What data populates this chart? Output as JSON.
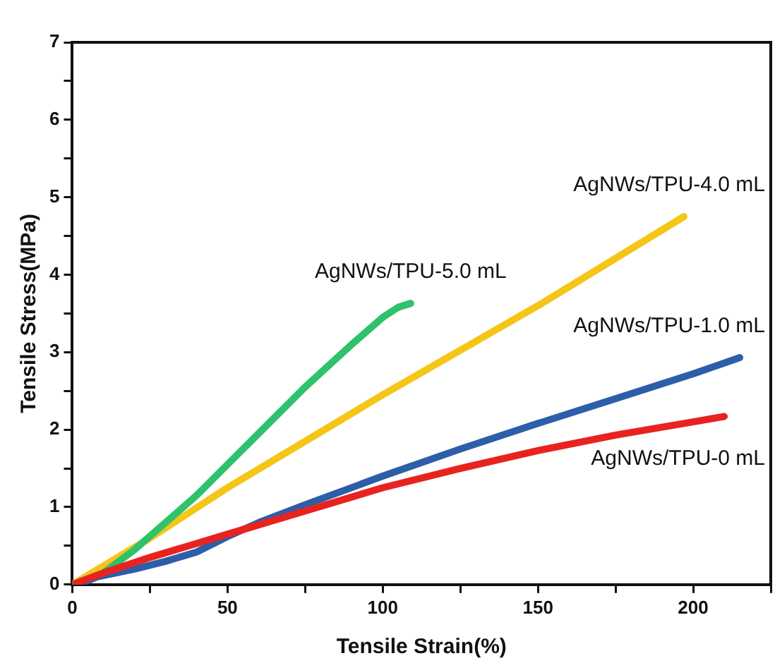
{
  "chart_data": {
    "type": "line",
    "xlabel": "Tensile Strain(%)",
    "ylabel": "Tensile Stress(MPa)",
    "xlim": [
      0,
      225
    ],
    "ylim": [
      0,
      7
    ],
    "xticks": [
      0,
      {
        "value": 25,
        "label": null
      },
      50,
      {
        "value": 75,
        "label": null
      },
      100,
      {
        "value": 125,
        "label": null
      },
      150,
      {
        "value": 175,
        "label": null
      },
      200,
      {
        "value": 225,
        "label": null
      }
    ],
    "yticks": [
      0,
      {
        "value": 0.5,
        "label": null
      },
      1,
      {
        "value": 1.5,
        "label": null
      },
      2,
      {
        "value": 2.5,
        "label": null
      },
      3,
      {
        "value": 3.5,
        "label": null
      },
      4,
      {
        "value": 4.5,
        "label": null
      },
      5,
      {
        "value": 5.5,
        "label": null
      },
      6,
      {
        "value": 6.5,
        "label": null
      },
      7
    ],
    "grid": false,
    "legend": false,
    "marker": "none",
    "line_style": "solid",
    "series": [
      {
        "name": "AgNWs/TPU-0 mL",
        "color": "#e8231f",
        "x": [
          0,
          10,
          25,
          50,
          75,
          100,
          125,
          150,
          175,
          200,
          210
        ],
        "values": [
          0,
          0.15,
          0.35,
          0.65,
          0.95,
          1.25,
          1.5,
          1.73,
          1.93,
          2.1,
          2.17
        ]
      },
      {
        "name": "AgNWs/TPU-1.0 mL",
        "color": "#2d5ea8",
        "x": [
          2,
          8,
          20,
          30,
          40,
          50,
          60,
          75,
          100,
          125,
          150,
          175,
          200,
          215
        ],
        "values": [
          0,
          0.1,
          0.2,
          0.3,
          0.42,
          0.62,
          0.8,
          1.03,
          1.4,
          1.75,
          2.08,
          2.4,
          2.72,
          2.93
        ]
      },
      {
        "name": "AgNWs/TPU-5.0 mL",
        "color": "#2ec26a",
        "x": [
          0,
          10,
          20,
          30,
          40,
          50,
          60,
          75,
          90,
          100,
          105,
          109
        ],
        "values": [
          0,
          0.15,
          0.45,
          0.8,
          1.15,
          1.55,
          1.95,
          2.55,
          3.1,
          3.45,
          3.58,
          3.63
        ]
      },
      {
        "name": "AgNWs/TPU-4.0 mL",
        "color": "#f5c518",
        "x": [
          0,
          25,
          50,
          100,
          150,
          197
        ],
        "values": [
          0,
          0.6,
          1.25,
          2.45,
          3.6,
          4.75
        ]
      }
    ]
  }
}
